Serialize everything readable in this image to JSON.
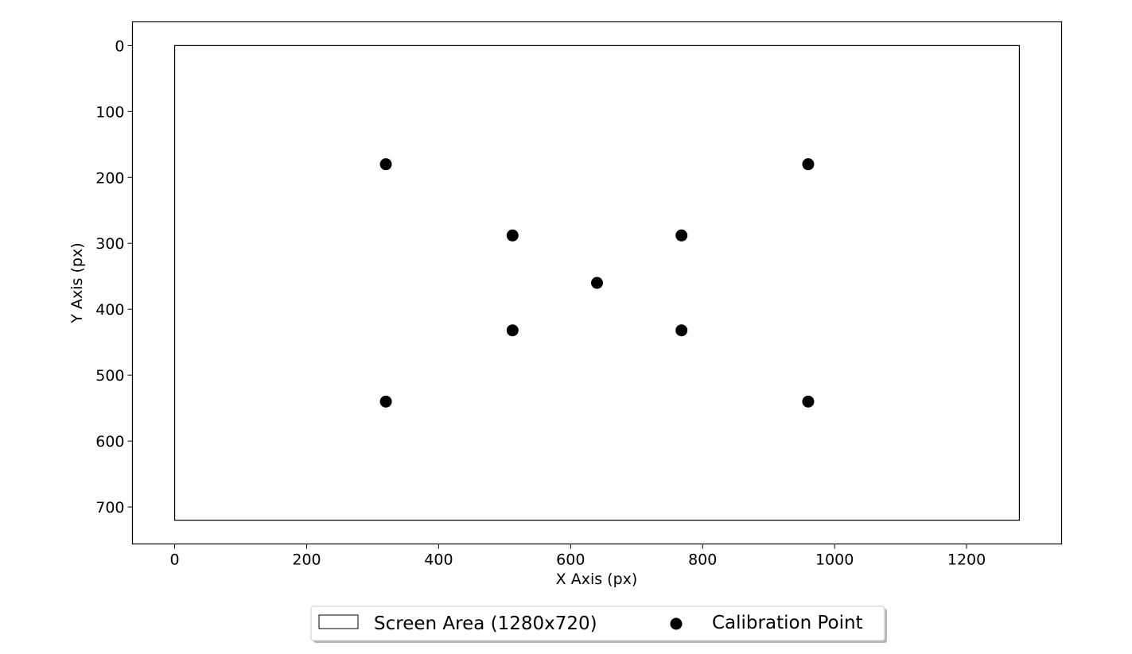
{
  "chart_data": {
    "type": "scatter",
    "title": "",
    "xlabel": "X Axis (px)",
    "ylabel": "Y Axis (px)",
    "xlim": [
      -64,
      1344
    ],
    "ylim": [
      756,
      -36
    ],
    "y_inverted": true,
    "grid": false,
    "x_ticks": [
      0,
      200,
      400,
      600,
      800,
      1000,
      1200
    ],
    "y_ticks": [
      0,
      100,
      200,
      300,
      400,
      500,
      600,
      700
    ],
    "screen_area": {
      "x": 0,
      "y": 0,
      "width": 1280,
      "height": 720,
      "label": "Screen Area (1280x720)"
    },
    "series": [
      {
        "name": "Calibration Point",
        "color": "#000000",
        "points": [
          {
            "x": 320,
            "y": 180
          },
          {
            "x": 960,
            "y": 180
          },
          {
            "x": 512,
            "y": 288
          },
          {
            "x": 768,
            "y": 288
          },
          {
            "x": 640,
            "y": 360
          },
          {
            "x": 512,
            "y": 432
          },
          {
            "x": 768,
            "y": 432
          },
          {
            "x": 320,
            "y": 540
          },
          {
            "x": 960,
            "y": 540
          }
        ]
      }
    ],
    "legend": {
      "placement": "bottom-center",
      "entries": [
        "Screen Area (1280x720)",
        "Calibration Point"
      ]
    }
  }
}
